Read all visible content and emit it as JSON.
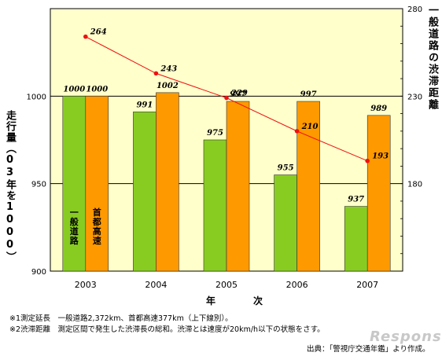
{
  "chart_data": {
    "type": "bar",
    "categories": [
      "2003",
      "2004",
      "2005",
      "2006",
      "2007"
    ],
    "series": [
      {
        "name": "一般道路",
        "values": [
          1000,
          991,
          975,
          955,
          937
        ],
        "color": "#88cc22"
      },
      {
        "name": "首都高速",
        "values": [
          1000,
          1002,
          997,
          997,
          989
        ],
        "color": "#ff9900"
      }
    ],
    "line_series": {
      "values": [
        264,
        243,
        229,
        210,
        193
      ],
      "color": "#ee1111"
    },
    "ylim": [
      900,
      1050
    ],
    "y_ticks": [
      "900",
      "950",
      "1000"
    ],
    "y2lim": [
      130,
      280
    ],
    "y2_ticks": [
      "180",
      "230",
      "280"
    ],
    "ylabel": "走行量（03年を1000）",
    "y2label": "一般道路の渋滞距離",
    "xlabel": "年　次",
    "gridlines": true
  },
  "notes": [
    "※1測定延長　一般道路2,372km、首都高速377km（上下線別）。",
    "※2渋滞距離　測定区間で発生した渋滞長の総和。渋滞とは速度が20km/h以下の状態をさす。"
  ],
  "source": "出典：「警視庁交通年鑑」より作成。",
  "watermark": "Response",
  "colors": {
    "plot_bg": "#ffffcc",
    "line": "#ee1111"
  }
}
